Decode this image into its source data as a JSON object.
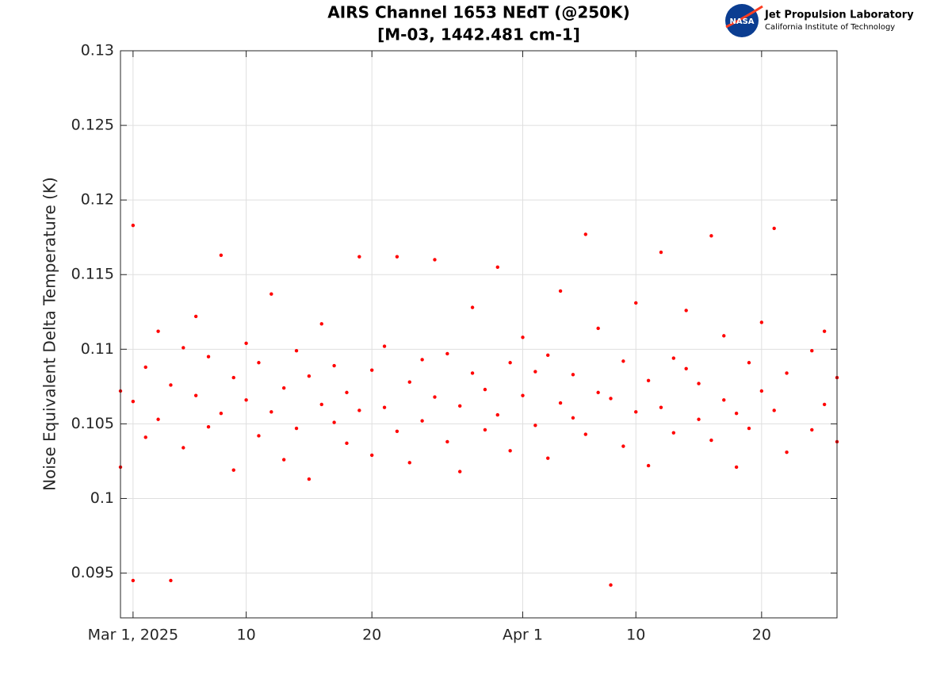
{
  "chart_data": {
    "type": "scatter",
    "title": "AIRS Channel 1653 NEdT (@250K)",
    "subtitle": "[M-03, 1442.481 cm-1]",
    "y_label": "Noise Equivalent Delta Temperature (K)",
    "color": "#ff0000",
    "grid": true,
    "xlim": [
      "2025-02-28",
      "2025-04-26"
    ],
    "xticks": [
      {
        "value": "2025-03-01",
        "label": "Mar 1, 2025"
      },
      {
        "value": "2025-03-10",
        "label": "10"
      },
      {
        "value": "2025-03-20",
        "label": "20"
      },
      {
        "value": "2025-04-01",
        "label": "Apr 1"
      },
      {
        "value": "2025-04-10",
        "label": "10"
      },
      {
        "value": "2025-04-20",
        "label": "20"
      }
    ],
    "ylim": [
      0.092,
      0.13
    ],
    "yticks": [
      0.095,
      0.1,
      0.105,
      0.11,
      0.115,
      0.12,
      0.125,
      0.13
    ],
    "x": [
      "2025-02-28",
      "2025-02-28",
      "2025-03-01",
      "2025-03-01",
      "2025-03-01",
      "2025-03-02",
      "2025-03-02",
      "2025-03-03",
      "2025-03-03",
      "2025-03-04",
      "2025-03-04",
      "2025-03-05",
      "2025-03-05",
      "2025-03-06",
      "2025-03-06",
      "2025-03-07",
      "2025-03-07",
      "2025-03-08",
      "2025-03-08",
      "2025-03-09",
      "2025-03-09",
      "2025-03-10",
      "2025-03-10",
      "2025-03-11",
      "2025-03-11",
      "2025-03-12",
      "2025-03-12",
      "2025-03-13",
      "2025-03-13",
      "2025-03-14",
      "2025-03-14",
      "2025-03-15",
      "2025-03-15",
      "2025-03-16",
      "2025-03-16",
      "2025-03-17",
      "2025-03-17",
      "2025-03-18",
      "2025-03-18",
      "2025-03-19",
      "2025-03-19",
      "2025-03-20",
      "2025-03-20",
      "2025-03-21",
      "2025-03-21",
      "2025-03-22",
      "2025-03-22",
      "2025-03-23",
      "2025-03-23",
      "2025-03-24",
      "2025-03-24",
      "2025-03-25",
      "2025-03-25",
      "2025-03-26",
      "2025-03-26",
      "2025-03-27",
      "2025-03-27",
      "2025-03-28",
      "2025-03-28",
      "2025-03-29",
      "2025-03-29",
      "2025-03-30",
      "2025-03-30",
      "2025-03-31",
      "2025-03-31",
      "2025-04-01",
      "2025-04-01",
      "2025-04-02",
      "2025-04-02",
      "2025-04-03",
      "2025-04-03",
      "2025-04-04",
      "2025-04-04",
      "2025-04-05",
      "2025-04-05",
      "2025-04-06",
      "2025-04-06",
      "2025-04-07",
      "2025-04-07",
      "2025-04-08",
      "2025-04-08",
      "2025-04-09",
      "2025-04-09",
      "2025-04-10",
      "2025-04-10",
      "2025-04-11",
      "2025-04-11",
      "2025-04-12",
      "2025-04-12",
      "2025-04-13",
      "2025-04-13",
      "2025-04-14",
      "2025-04-14",
      "2025-04-15",
      "2025-04-15",
      "2025-04-16",
      "2025-04-16",
      "2025-04-17",
      "2025-04-17",
      "2025-04-18",
      "2025-04-18",
      "2025-04-19",
      "2025-04-19",
      "2025-04-20",
      "2025-04-20",
      "2025-04-21",
      "2025-04-21",
      "2025-04-22",
      "2025-04-22",
      "2025-04-24",
      "2025-04-24",
      "2025-04-25",
      "2025-04-25",
      "2025-04-26",
      "2025-04-26"
    ],
    "values": [
      0.1072,
      0.1021,
      0.1183,
      0.0945,
      0.1065,
      0.1088,
      0.1041,
      0.1112,
      0.1053,
      0.0945,
      0.1076,
      0.1101,
      0.1034,
      0.1069,
      0.1122,
      0.1048,
      0.1095,
      0.1163,
      0.1057,
      0.1081,
      0.1019,
      0.1066,
      0.1104,
      0.1042,
      0.1091,
      0.1137,
      0.1058,
      0.1074,
      0.1026,
      0.1099,
      0.1047,
      0.1082,
      0.1013,
      0.1063,
      0.1117,
      0.1051,
      0.1089,
      0.1071,
      0.1037,
      0.1162,
      0.1059,
      0.1086,
      0.1029,
      0.1102,
      0.1061,
      0.1045,
      0.1162,
      0.1078,
      0.1024,
      0.1093,
      0.1052,
      0.116,
      0.1068,
      0.1038,
      0.1097,
      0.1062,
      0.1018,
      0.1084,
      0.1128,
      0.1046,
      0.1073,
      0.1155,
      0.1056,
      0.1091,
      0.1032,
      0.1069,
      0.1108,
      0.1049,
      0.1085,
      0.1027,
      0.1096,
      0.1064,
      0.1139,
      0.1054,
      0.1083,
      0.1177,
      0.1043,
      0.1071,
      0.1114,
      0.0942,
      0.1067,
      0.1092,
      0.1035,
      0.1058,
      0.1131,
      0.1079,
      0.1022,
      0.1061,
      0.1165,
      0.1094,
      0.1044,
      0.1087,
      0.1126,
      0.1053,
      0.1077,
      0.1176,
      0.1039,
      0.1066,
      0.1109,
      0.1057,
      0.1021,
      0.1091,
      0.1047,
      0.1072,
      0.1118,
      0.1181,
      0.1059,
      0.1084,
      0.1031,
      0.1099,
      0.1046,
      0.1063,
      0.1112,
      0.1038,
      0.1081
    ]
  },
  "logo": {
    "badge": "NASA",
    "name": "Jet Propulsion Laboratory",
    "subtitle": "California Institute of Technology"
  }
}
